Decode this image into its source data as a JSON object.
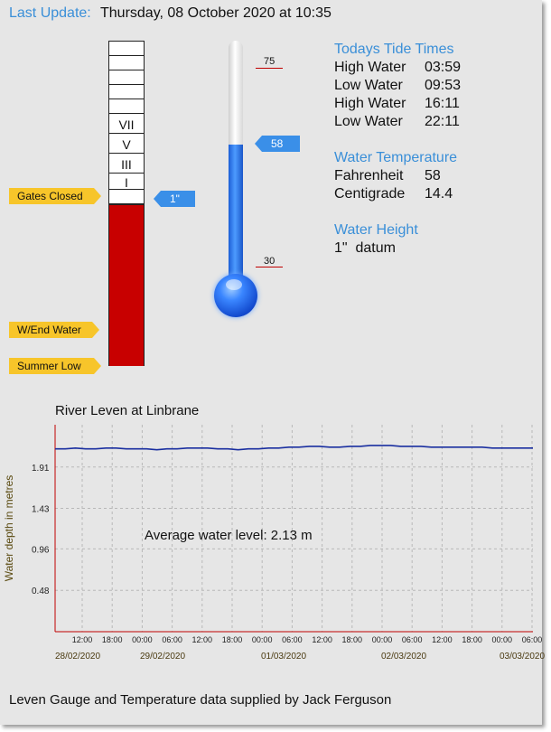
{
  "header": {
    "last_update_label": "Last Update:",
    "last_update_value": "Thursday, 08 October 2020 at 10:35"
  },
  "gauge": {
    "marks": [
      "VII",
      "V",
      "III",
      "I"
    ],
    "level_label": "1\"",
    "tags": {
      "gates_closed": "Gates Closed",
      "wend_water": "W/End Water",
      "summer_low": "Summer Low"
    }
  },
  "thermometer": {
    "scale_top": "75",
    "scale_bottom": "30",
    "value": "58"
  },
  "tides": {
    "heading": "Todays Tide Times",
    "rows": [
      {
        "label": "High Water",
        "time": "03:59"
      },
      {
        "label": "Low Water",
        "time": "09:53"
      },
      {
        "label": "High Water",
        "time": "16:11"
      },
      {
        "label": "Low Water",
        "time": "22:11"
      }
    ]
  },
  "water_temperature": {
    "heading": "Water Temperature",
    "rows": [
      {
        "label": "Fahrenheit",
        "value": "58"
      },
      {
        "label": "Centigrade",
        "value": "14.4"
      }
    ]
  },
  "water_height": {
    "heading": "Water Height",
    "value": "1\"  datum"
  },
  "chart_data": {
    "type": "line",
    "title": "River Leven at Linbrane",
    "ylabel": "Water depth in metres",
    "ytick_labels": [
      "1.91",
      "1.43",
      "0.96",
      "0.48"
    ],
    "yticks": [
      1.91,
      1.43,
      0.96,
      0.48
    ],
    "ylim": [
      0,
      2.4
    ],
    "xtick_labels": [
      "12:00",
      "18:00",
      "00:00",
      "06:00",
      "12:00",
      "18:00",
      "00:00",
      "06:00",
      "12:00",
      "18:00",
      "00:00",
      "06:00",
      "12:00",
      "18:00",
      "00:00",
      "06:00"
    ],
    "date_labels": [
      "28/02/2020",
      "29/02/2020",
      "01/03/2020",
      "02/03/2020",
      "03/03/2020"
    ],
    "annotation": "Average water level: 2.13 m",
    "series": [
      {
        "color": "#1a2fa0",
        "values": [
          2.12,
          2.12,
          2.13,
          2.12,
          2.12,
          2.13,
          2.13,
          2.12,
          2.12,
          2.12,
          2.11,
          2.12,
          2.12,
          2.13,
          2.13,
          2.13,
          2.12,
          2.12,
          2.11,
          2.12,
          2.12,
          2.13,
          2.13,
          2.14,
          2.14,
          2.15,
          2.15,
          2.14,
          2.14,
          2.15,
          2.15,
          2.16,
          2.16,
          2.16,
          2.15,
          2.15,
          2.15,
          2.14,
          2.14,
          2.14,
          2.14,
          2.14,
          2.14,
          2.13,
          2.13,
          2.13,
          2.13,
          2.13
        ]
      }
    ],
    "grid": true
  },
  "footer": {
    "text": "Leven Gauge and Temperature data supplied by Jack Ferguson"
  }
}
